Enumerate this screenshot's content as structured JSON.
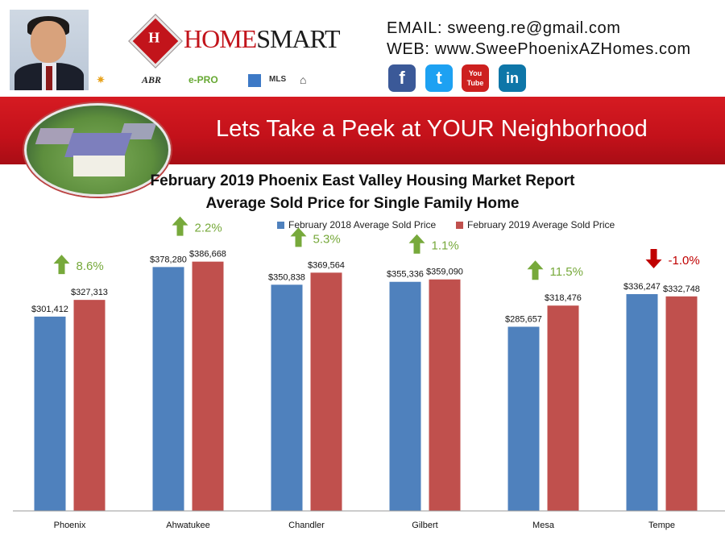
{
  "header": {
    "brand_prefix": "HOME",
    "brand_suffix": "SMART",
    "logo_mark": "H",
    "email_label": "EMAIL:",
    "email": "sweeng.re@gmail.com",
    "web_label": "WEB:",
    "web": "www.SweePhoenixAZHomes.com",
    "certifications": [
      "ABR",
      "e-PRO",
      "MLS"
    ],
    "socials": [
      {
        "name": "facebook",
        "glyph": "f",
        "color": "#3b5998"
      },
      {
        "name": "twitter",
        "glyph": "t",
        "color": "#1da1f2"
      },
      {
        "name": "youtube",
        "glyph": "You Tube",
        "color": "#cd201f"
      },
      {
        "name": "linkedin",
        "glyph": "in",
        "color": "#0e76a8"
      }
    ]
  },
  "banner": {
    "title": "Lets Take a Peek at YOUR Neighborhood"
  },
  "chart_data": {
    "type": "bar",
    "title": "February 2019 Phoenix East Valley Housing Market Report",
    "subtitle": "Average Sold Price for Single Family Home",
    "categories": [
      "Phoenix",
      "Ahwatukee",
      "Chandler",
      "Gilbert",
      "Mesa",
      "Tempe"
    ],
    "series": [
      {
        "name": "February 2018 Average Sold Price",
        "color": "#4f81bd",
        "values": [
          301412,
          378280,
          350838,
          355336,
          285657,
          336247
        ],
        "labels": [
          "$301,412",
          "$378,280",
          "$350,838",
          "$355,336",
          "$285,657",
          "$336,247"
        ]
      },
      {
        "name": "February 2019 Average Sold Price",
        "color": "#c0504d",
        "values": [
          327313,
          386668,
          369564,
          359090,
          318476,
          332748
        ],
        "labels": [
          "$327,313",
          "$386,668",
          "$369,564",
          "$359,090",
          "$318,476",
          "$332,748"
        ]
      }
    ],
    "changes": [
      {
        "label": "8.6%",
        "direction": "up"
      },
      {
        "label": "2.2%",
        "direction": "up"
      },
      {
        "label": "5.3%",
        "direction": "up"
      },
      {
        "label": "1.1%",
        "direction": "up"
      },
      {
        "label": "11.5%",
        "direction": "up"
      },
      {
        "label": "-1.0%",
        "direction": "down"
      }
    ],
    "up_color": "#77a93b",
    "down_color": "#c00000",
    "ylim": [
      0,
      440000
    ],
    "grid": false,
    "legend_position": "top"
  }
}
